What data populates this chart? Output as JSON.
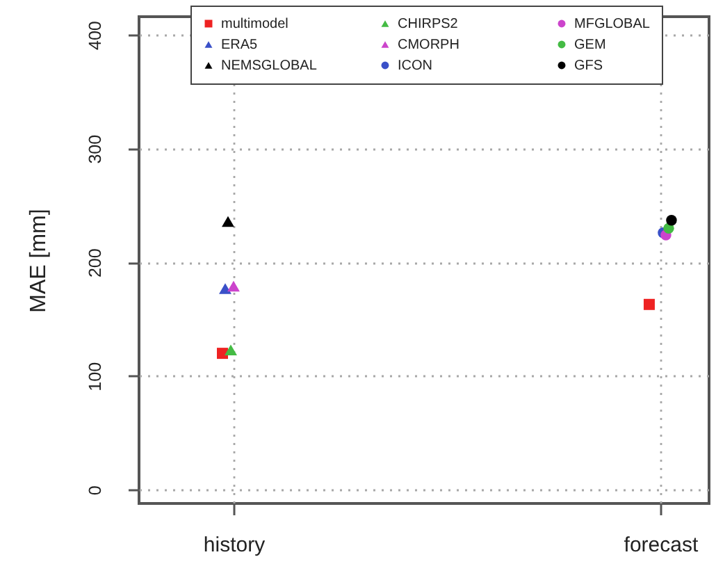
{
  "chart_data": {
    "type": "scatter",
    "ylabel": "MAE [mm]",
    "categories": [
      "history",
      "forecast"
    ],
    "series": [
      {
        "name": "multimodel",
        "color": "#ee2222",
        "marker": "square",
        "values": [
          120,
          163
        ]
      },
      {
        "name": "ERA5",
        "color": "#3a50c8",
        "marker": "triangle",
        "values": [
          177,
          null
        ]
      },
      {
        "name": "NEMSGLOBAL",
        "color": "#000000",
        "marker": "triangle",
        "values": [
          236,
          null
        ]
      },
      {
        "name": "CHIRPS2",
        "color": "#44bb44",
        "marker": "triangle",
        "values": [
          123,
          null
        ]
      },
      {
        "name": "CMORPH",
        "color": "#cc44cc",
        "marker": "triangle",
        "values": [
          179,
          null
        ]
      },
      {
        "name": "ICON",
        "color": "#3a50c8",
        "marker": "circle",
        "values": [
          null,
          226
        ]
      },
      {
        "name": "MFGLOBAL",
        "color": "#cc44cc",
        "marker": "circle",
        "values": [
          null,
          224
        ]
      },
      {
        "name": "GEM",
        "color": "#44bb44",
        "marker": "circle",
        "values": [
          null,
          230
        ]
      },
      {
        "name": "GFS",
        "color": "#000000",
        "marker": "circle",
        "values": [
          null,
          237
        ]
      }
    ],
    "ylim": [
      -12,
      416
    ],
    "yticks": [
      0,
      100,
      200,
      300,
      400
    ],
    "grid": true,
    "legend": "top right"
  }
}
